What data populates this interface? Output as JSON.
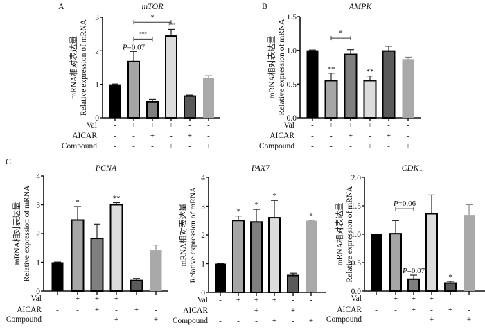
{
  "figure": {
    "bar_colors": [
      "#000000",
      "#a6a6a6",
      "#7f7f7f",
      "#dcdcdc",
      "#5a5a5a",
      "#a9a9a9"
    ],
    "row_labels": [
      "Val",
      "AICAR",
      "Compound"
    ],
    "conditions": {
      "Val": [
        "-",
        "+",
        "+",
        "+",
        "-",
        "-"
      ],
      "AICAR": [
        "-",
        "-",
        "+",
        "-",
        "+",
        "-"
      ],
      "Compound": [
        "-",
        "-",
        "-",
        "+",
        "-",
        "+"
      ]
    },
    "ylabel_cn": "mRNA相对表达量",
    "ylabel_en": "Relative expression of mRNA"
  },
  "chart_data": [
    {
      "panel": "A",
      "type": "bar",
      "title": "mTOR",
      "categories": [
        "g1",
        "g2",
        "g3",
        "g4",
        "g5",
        "g6"
      ],
      "values": [
        1.0,
        1.68,
        0.48,
        2.44,
        0.65,
        1.2
      ],
      "errors": [
        0.01,
        0.3,
        0.07,
        0.2,
        0.03,
        0.06
      ],
      "ylim": [
        0,
        3
      ],
      "yticks": [
        "0",
        "1",
        "2",
        "3"
      ],
      "ytick_values": [
        0,
        1,
        2,
        3
      ],
      "bar_marks": [
        "",
        "",
        "",
        "**",
        "",
        ""
      ],
      "annotations": [
        {
          "type": "text",
          "text": "P=0.07",
          "bar": 1
        },
        {
          "type": "bracket",
          "from": 1,
          "to": 2,
          "text": "**",
          "level": 2.35
        },
        {
          "type": "bracket",
          "from": 1,
          "to": 3,
          "text": "*",
          "level": 2.85
        }
      ]
    },
    {
      "panel": "B",
      "type": "bar",
      "title": "AMPK",
      "categories": [
        "g1",
        "g2",
        "g3",
        "g4",
        "g5",
        "g6"
      ],
      "values": [
        1.0,
        0.55,
        0.94,
        0.55,
        0.99,
        0.87
      ],
      "errors": [
        0.005,
        0.11,
        0.07,
        0.07,
        0.07,
        0.03
      ],
      "ylim": [
        0,
        1.5
      ],
      "yticks": [
        "0.0",
        "0.5",
        "1.0",
        "1.5"
      ],
      "ytick_values": [
        0,
        0.5,
        1.0,
        1.5
      ],
      "bar_marks": [
        "",
        "**",
        "",
        "**",
        "",
        ""
      ],
      "annotations": [
        {
          "type": "bracket",
          "from": 1,
          "to": 2,
          "text": "*",
          "level": 1.18
        }
      ]
    },
    {
      "panel": "C",
      "type": "bar",
      "title": "PCNA",
      "categories": [
        "g1",
        "g2",
        "g3",
        "g4",
        "g5",
        "g6"
      ],
      "values": [
        1.0,
        2.47,
        1.83,
        3.0,
        0.37,
        1.42
      ],
      "errors": [
        0.01,
        0.47,
        0.5,
        0.07,
        0.07,
        0.18
      ],
      "ylim": [
        0,
        4
      ],
      "yticks": [
        "0",
        "1",
        "2",
        "3",
        "4"
      ],
      "ytick_values": [
        0,
        1,
        2,
        3,
        4
      ],
      "bar_marks": [
        "",
        "*",
        "",
        "**",
        "",
        ""
      ],
      "annotations": []
    },
    {
      "panel": "",
      "type": "bar",
      "title": "PAX7",
      "categories": [
        "g1",
        "g2",
        "g3",
        "g4",
        "g5",
        "g6"
      ],
      "values": [
        1.0,
        2.5,
        2.45,
        2.6,
        0.59,
        2.49
      ],
      "errors": [
        0.01,
        0.16,
        0.44,
        0.6,
        0.08,
        0.02
      ],
      "ylim": [
        0,
        4
      ],
      "yticks": [
        "0",
        "1",
        "2",
        "3",
        "4"
      ],
      "ytick_values": [
        0,
        1,
        2,
        3,
        4
      ],
      "bar_marks": [
        "",
        "*",
        "*",
        "*",
        "",
        "*"
      ],
      "annotations": []
    },
    {
      "panel": "",
      "type": "bar",
      "title": "CDK1",
      "categories": [
        "g1",
        "g2",
        "g3",
        "g4",
        "g5",
        "g6"
      ],
      "values": [
        1.0,
        1.01,
        0.21,
        1.36,
        0.14,
        1.34
      ],
      "errors": [
        0.005,
        0.23,
        0.07,
        0.33,
        0.03,
        0.18
      ],
      "ylim": [
        0,
        2.0
      ],
      "yticks": [
        "0.0",
        "0.5",
        "1.0",
        "1.5",
        "2.0"
      ],
      "ytick_values": [
        0,
        0.5,
        1.0,
        1.5,
        2.0
      ],
      "bar_marks": [
        "",
        "",
        "",
        "",
        "*",
        ""
      ],
      "annotations": [
        {
          "type": "text",
          "text": "P=0.07",
          "bar": 2
        },
        {
          "type": "bracket",
          "from": 1,
          "to": 2,
          "text": "P=0.06",
          "level": 1.45
        }
      ]
    }
  ]
}
